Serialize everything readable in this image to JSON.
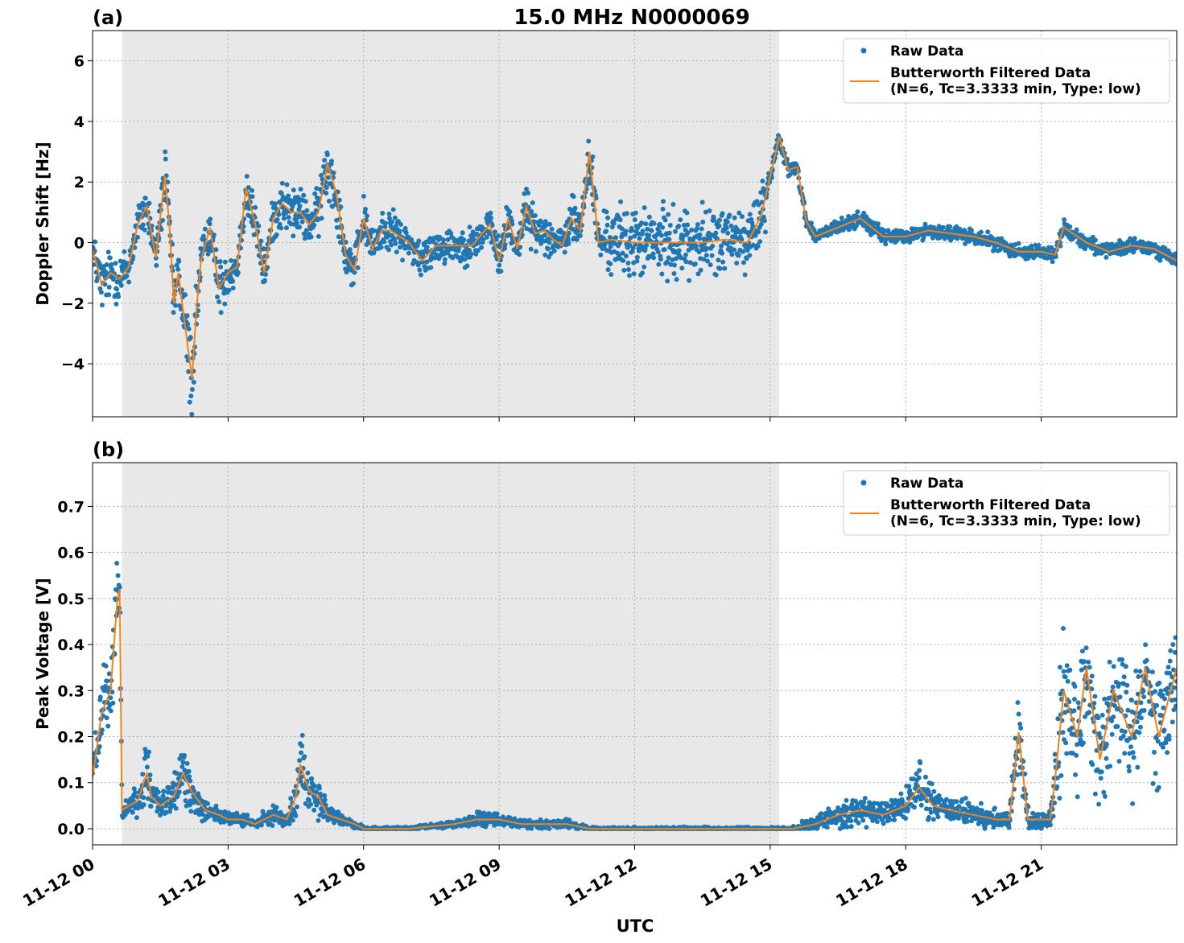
{
  "figure": {
    "title": "15.0 MHz N0000069",
    "xlabel": "UTC",
    "x_tick_labels": [
      "11-12 00",
      "11-12 03",
      "11-12 06",
      "11-12 09",
      "11-12 12",
      "11-12 15",
      "11-12 18",
      "11-12 21"
    ]
  },
  "chart_data": [
    {
      "panel_label": "(a)",
      "type": "line",
      "ylabel": "Doppler Shift [Hz]",
      "ylim": [
        -5.75,
        7.0
      ],
      "xlim_hours": [
        0,
        24
      ],
      "y_ticks": [
        6,
        4,
        2,
        0,
        -2,
        -4
      ],
      "y_tick_labels": [
        "6",
        "4",
        "2",
        "0",
        "−2",
        "−4"
      ],
      "shaded_interval_hours": [
        0.65,
        15.2
      ],
      "grid": true,
      "legend_position": "top-right",
      "legend": {
        "raw_label": "Raw Data",
        "filtered_label_line1": "Butterworth Filtered Data",
        "filtered_label_line2": "(N=6, Tc=3.3333 min, Type: low)"
      },
      "colors": {
        "raw": "#1f77b4",
        "filtered": "#ff7f0e",
        "shade": "#e8e8e8"
      },
      "series": [
        {
          "name": "Butterworth Filtered Data",
          "x": [
            0,
            0.2,
            0.4,
            0.6,
            0.8,
            1.0,
            1.2,
            1.4,
            1.6,
            1.7,
            1.8,
            1.9,
            2.0,
            2.2,
            2.3,
            2.4,
            2.6,
            2.8,
            3.0,
            3.2,
            3.4,
            3.6,
            3.8,
            4.0,
            4.2,
            4.4,
            4.6,
            4.8,
            5.0,
            5.2,
            5.4,
            5.6,
            5.8,
            6.0,
            6.2,
            6.4,
            6.6,
            6.8,
            7.0,
            7.3,
            7.6,
            8.0,
            8.4,
            8.8,
            9.0,
            9.2,
            9.4,
            9.6,
            9.8,
            10.0,
            10.2,
            10.4,
            10.6,
            10.8,
            11.0,
            11.2,
            11.5,
            12.0,
            12.5,
            13.0,
            13.5,
            14.0,
            14.5,
            14.8,
            15.0,
            15.2,
            15.4,
            15.6,
            15.8,
            16.0,
            16.5,
            17.0,
            17.5,
            18.0,
            18.5,
            19.0,
            19.5,
            20.0,
            20.5,
            21.0,
            21.3,
            21.5,
            22.0,
            22.5,
            23.0,
            23.5,
            24.0
          ],
          "y": [
            -0.2,
            -1.4,
            -1.0,
            -1.2,
            -0.8,
            0.6,
            1.2,
            -0.5,
            2.2,
            0.6,
            -2.0,
            -1.0,
            -2.2,
            -4.5,
            -2.2,
            -0.6,
            0.5,
            -1.5,
            -1.0,
            -0.8,
            1.8,
            0.6,
            -1.0,
            0.8,
            1.3,
            1.0,
            1.0,
            0.6,
            1.0,
            2.6,
            1.6,
            -0.4,
            -0.9,
            0.8,
            -0.2,
            0.4,
            0.4,
            0.2,
            0.0,
            -0.6,
            -0.1,
            -0.1,
            -0.1,
            0.6,
            -0.6,
            0.8,
            -0.2,
            1.2,
            0.3,
            0.4,
            0.1,
            -0.1,
            0.8,
            0.4,
            3.0,
            0.0,
            0.1,
            0.0,
            0.0,
            0.0,
            0.0,
            0.1,
            0.0,
            0.9,
            2.2,
            3.5,
            2.4,
            2.5,
            0.7,
            0.2,
            0.5,
            0.8,
            0.2,
            0.2,
            0.4,
            0.3,
            0.2,
            0.0,
            -0.3,
            -0.3,
            -0.4,
            0.5,
            0.0,
            -0.3,
            -0.1,
            -0.2,
            -0.6
          ]
        }
      ]
    },
    {
      "panel_label": "(b)",
      "type": "line",
      "ylabel": "Peak Voltage [V]",
      "ylim": [
        -0.035,
        0.795
      ],
      "xlim_hours": [
        0,
        24
      ],
      "y_ticks": [
        0.0,
        0.1,
        0.2,
        0.3,
        0.4,
        0.5,
        0.6,
        0.7
      ],
      "y_tick_labels": [
        "0.0",
        "0.1",
        "0.2",
        "0.3",
        "0.4",
        "0.5",
        "0.6",
        "0.7"
      ],
      "shaded_interval_hours": [
        0.65,
        15.2
      ],
      "grid": true,
      "legend_position": "top-right",
      "legend": {
        "raw_label": "Raw Data",
        "filtered_label_line1": "Butterworth Filtered Data",
        "filtered_label_line2": "(N=6, Tc=3.3333 min, Type: low)"
      },
      "colors": {
        "raw": "#1f77b4",
        "filtered": "#ff7f0e",
        "shade": "#e8e8e8"
      },
      "series": [
        {
          "name": "Butterworth Filtered Data",
          "x": [
            0,
            0.2,
            0.4,
            0.55,
            0.6,
            0.65,
            0.8,
            1.0,
            1.2,
            1.3,
            1.5,
            1.8,
            2.0,
            2.2,
            2.5,
            2.8,
            3.0,
            3.3,
            3.6,
            4.0,
            4.3,
            4.5,
            4.6,
            4.8,
            5.0,
            5.2,
            5.5,
            5.8,
            6.0,
            7.0,
            8.0,
            8.5,
            9.0,
            9.5,
            10.0,
            10.5,
            11.0,
            12.0,
            13.0,
            14.0,
            15.0,
            15.5,
            16.0,
            16.5,
            17.0,
            17.5,
            18.0,
            18.3,
            18.6,
            19.0,
            19.5,
            20.0,
            20.3,
            20.5,
            20.7,
            21.0,
            21.2,
            21.3,
            21.5,
            21.8,
            22.0,
            22.3,
            22.6,
            23.0,
            23.3,
            23.6,
            24.0
          ],
          "y": [
            0.11,
            0.25,
            0.3,
            0.5,
            0.52,
            0.04,
            0.05,
            0.06,
            0.12,
            0.07,
            0.05,
            0.07,
            0.12,
            0.08,
            0.04,
            0.03,
            0.02,
            0.02,
            0.01,
            0.03,
            0.02,
            0.07,
            0.14,
            0.08,
            0.07,
            0.03,
            0.02,
            0.01,
            0.0,
            0.0,
            0.01,
            0.02,
            0.02,
            0.01,
            0.01,
            0.01,
            0.0,
            0.0,
            0.0,
            0.0,
            0.0,
            0.0,
            0.01,
            0.03,
            0.04,
            0.03,
            0.05,
            0.09,
            0.05,
            0.04,
            0.03,
            0.02,
            0.02,
            0.21,
            0.02,
            0.02,
            0.02,
            0.1,
            0.3,
            0.2,
            0.35,
            0.15,
            0.3,
            0.2,
            0.35,
            0.2,
            0.35
          ]
        }
      ]
    }
  ]
}
